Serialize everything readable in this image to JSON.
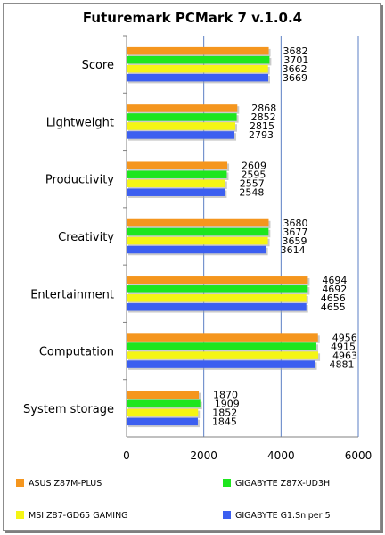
{
  "chart_data": {
    "type": "bar",
    "orientation": "horizontal",
    "title": "Futuremark PCMark 7 v.1.0.4",
    "categories": [
      "Score",
      "Lightweight",
      "Productivity",
      "Creativity",
      "Entertainment",
      "Computation",
      "System storage"
    ],
    "series": [
      {
        "name": "ASUS Z87M-PLUS",
        "color": "#f5961e",
        "values": [
          3682,
          2868,
          2609,
          3680,
          4694,
          4956,
          1870
        ]
      },
      {
        "name": "GIGABYTE Z87X-UD3H",
        "color": "#1ee61e",
        "values": [
          3701,
          2852,
          2595,
          3677,
          4692,
          4915,
          1909
        ]
      },
      {
        "name": "MSI Z87-GD65 GAMING",
        "color": "#f5f514",
        "values": [
          3662,
          2815,
          2557,
          3659,
          4656,
          4963,
          1852
        ]
      },
      {
        "name": "GIGABYTE G1.Sniper 5",
        "color": "#3c5ff0",
        "values": [
          3669,
          2793,
          2548,
          3614,
          4655,
          4881,
          1845
        ]
      }
    ],
    "xlim": [
      0,
      6000
    ],
    "xticks": [
      0,
      2000,
      4000,
      6000
    ],
    "grid": "vertical",
    "legend": "bottom"
  }
}
